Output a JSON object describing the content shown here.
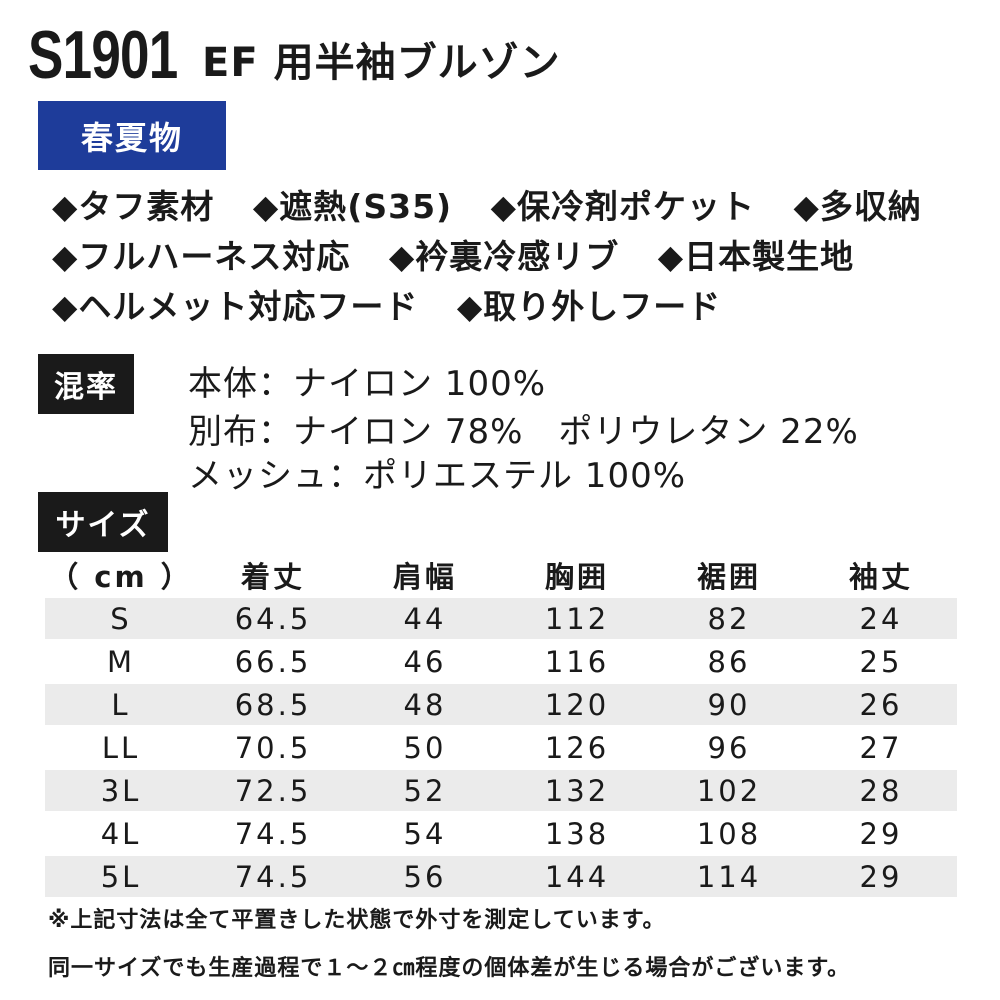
{
  "header": {
    "model": "S1901",
    "product_name": "EF 用半袖ブルゾン"
  },
  "season": {
    "label": "春夏物"
  },
  "features": [
    [
      "◆タフ素材",
      "◆遮熱(S35)",
      "◆保冷剤ポケット",
      "◆多収納"
    ],
    [
      "◆フルハーネス対応",
      "◆衿裏冷感リブ",
      "◆日本製生地"
    ],
    [
      "◆ヘルメット対応フード",
      "◆取り外しフード"
    ]
  ],
  "mix": {
    "label": "混率",
    "lines": [
      "本体：ナイロン 100%",
      "別布：ナイロン 78%　ポリウレタン 22%",
      "メッシュ：ポリエステル 100%"
    ]
  },
  "size": {
    "label": "サイズ",
    "headers": [
      "（ cm ）",
      "着丈",
      "肩幅",
      "胸囲",
      "裾囲",
      "袖丈"
    ],
    "rows": [
      [
        "S",
        "64.5",
        "44",
        "112",
        "82",
        "24"
      ],
      [
        "M",
        "66.5",
        "46",
        "116",
        "86",
        "25"
      ],
      [
        "L",
        "68.5",
        "48",
        "120",
        "90",
        "26"
      ],
      [
        "LL",
        "70.5",
        "50",
        "126",
        "96",
        "27"
      ],
      [
        "3L",
        "72.5",
        "52",
        "132",
        "102",
        "28"
      ],
      [
        "4L",
        "74.5",
        "54",
        "138",
        "108",
        "29"
      ],
      [
        "5L",
        "74.5",
        "56",
        "144",
        "114",
        "29"
      ]
    ]
  },
  "notes": [
    "※上記寸法は全て平置きした状態で外寸を測定しています。",
    "同一サイズでも生産過程で１～２㎝程度の個体差が生じる場合がございます。"
  ],
  "colors": {
    "season_badge": "#1e3c9a",
    "label_badge": "#1a1a1a",
    "row_stripe": "#ebebeb"
  }
}
